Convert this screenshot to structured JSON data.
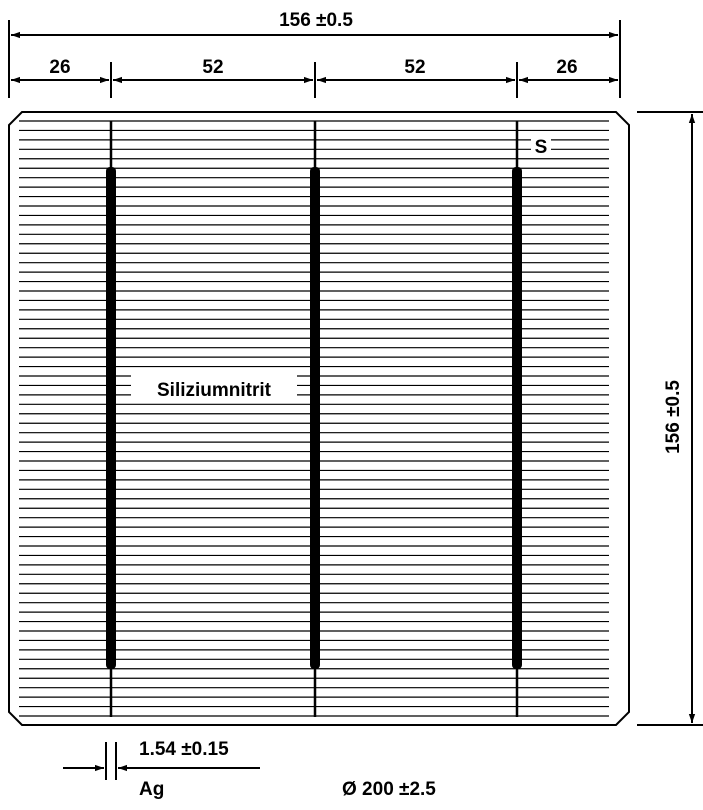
{
  "dimensions": {
    "total_width": "156 ±0.5",
    "segments": [
      "26",
      "52",
      "52",
      "26"
    ],
    "total_height": "156 ±0.5",
    "busbar_width": "1.54 ±0.15",
    "diameter": "Ø 200 ±2.5"
  },
  "labels": {
    "coating": "Siliziumnitrit",
    "corner": "S",
    "busbar_material": "Ag"
  },
  "cell": {
    "busbar_count": 3,
    "finger_count": 64
  },
  "colors": {
    "ink": "#000000",
    "background": "#ffffff"
  }
}
